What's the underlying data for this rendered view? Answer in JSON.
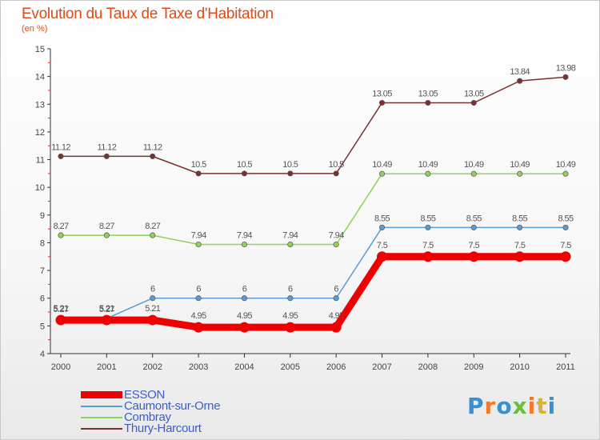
{
  "title": "Evolution du Taux de Taxe d'Habitation",
  "unit": "(en %)",
  "brand": {
    "text": "Proxiti",
    "colors": [
      "#3a8fd0",
      "#f07a2a",
      "#3a8fd0",
      "#6cbf3a",
      "#f07a2a",
      "#d8b23a",
      "#3a8fd0"
    ]
  },
  "chart_data": {
    "type": "line",
    "categories": [
      "2000",
      "2001",
      "2002",
      "2003",
      "2004",
      "2005",
      "2006",
      "2007",
      "2008",
      "2009",
      "2010",
      "2011"
    ],
    "ylim": [
      4,
      15
    ],
    "yticks": [
      4,
      5,
      6,
      7,
      8,
      9,
      10,
      11,
      12,
      13,
      14,
      15
    ],
    "grid": false,
    "legend_position": "bottom-left",
    "series": [
      {
        "name": "ESSON",
        "color": "#ee0000",
        "values": [
          5.21,
          5.21,
          5.21,
          4.95,
          4.95,
          4.95,
          4.95,
          7.5,
          7.5,
          7.5,
          7.5,
          7.5
        ],
        "labels": [
          "5.21",
          "5.21",
          "5.21",
          "4.95",
          "4.95",
          "4.95",
          "4.95",
          "7.5",
          "7.5",
          "7.5",
          "7.5",
          "7.5"
        ]
      },
      {
        "name": "Caumont-sur-Orne",
        "color": "#5b9bd5",
        "values": [
          5.27,
          5.27,
          6,
          6,
          6,
          6,
          6,
          8.55,
          8.55,
          8.55,
          8.55,
          8.55
        ],
        "labels": [
          "5.27",
          "5.27",
          "6",
          "6",
          "6",
          "6",
          "6",
          "8.55",
          "8.55",
          "8.55",
          "8.55",
          "8.55"
        ]
      },
      {
        "name": "Combray",
        "color": "#8fd35a",
        "values": [
          8.27,
          8.27,
          8.27,
          7.94,
          7.94,
          7.94,
          7.94,
          10.49,
          10.49,
          10.49,
          10.49,
          10.49
        ],
        "labels": [
          "8.27",
          "8.27",
          "8.27",
          "7.94",
          "7.94",
          "7.94",
          "7.94",
          "10.49",
          "10.49",
          "10.49",
          "10.49",
          "10.49"
        ]
      },
      {
        "name": "Thury-Harcourt",
        "color": "#7b3030",
        "values": [
          11.12,
          11.12,
          11.12,
          10.5,
          10.5,
          10.5,
          10.5,
          13.05,
          13.05,
          13.05,
          13.84,
          13.98
        ],
        "labels": [
          "11.12",
          "11.12",
          "11.12",
          "10.5",
          "10.5",
          "10.5",
          "10.5",
          "13.05",
          "13.05",
          "13.05",
          "13.84",
          "13.98"
        ]
      }
    ]
  }
}
